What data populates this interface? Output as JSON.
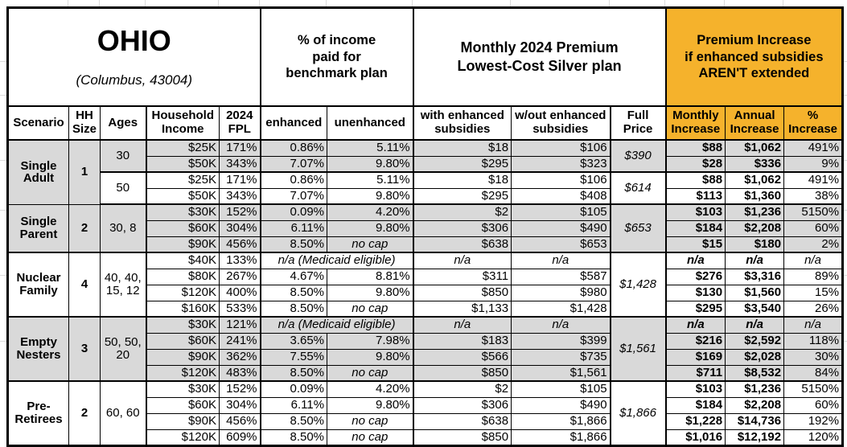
{
  "header": {
    "title": "OHIO",
    "subtitle": "(Columbus, 43004)",
    "income_banner": "% of income\npaid for\nbenchmark plan",
    "premium_banner": "Monthly 2024 Premium\nLowest-Cost Silver plan",
    "increase_banner": "Premium Increase\nif enhanced subsidies\nAREN'T extended"
  },
  "colors": {
    "header_highlight": "#F5B22C",
    "row_shade": "#D9D9D9",
    "table_border": "#000000"
  },
  "chart_data": {
    "type": "table",
    "title": "OHIO (Columbus, 43004) — Monthly 2024 Premium, Lowest-Cost Silver plan",
    "columns": [
      "Scenario",
      "HH\nSize",
      "Ages",
      "Household\nIncome",
      "2024\nFPL",
      "enhanced",
      "unenhanced",
      "with enhanced\nsubsidies",
      "w/out enhanced\nsubsidies",
      "Full\nPrice",
      "Monthly\nIncrease",
      "Annual\nIncrease",
      "%\nIncrease"
    ],
    "rows": [
      [
        "Single Adult",
        "1",
        "30",
        "$25K",
        "171%",
        "0.86%",
        "5.11%",
        "$18",
        "$106",
        "$390",
        "$88",
        "$1,062",
        "491%"
      ],
      [
        "",
        "",
        "",
        "$50K",
        "343%",
        "7.07%",
        "9.80%",
        "$295",
        "$323",
        "",
        "$28",
        "$336",
        "9%"
      ],
      [
        "",
        "",
        "50",
        "$25K",
        "171%",
        "0.86%",
        "5.11%",
        "$18",
        "$106",
        "$614",
        "$88",
        "$1,062",
        "491%"
      ],
      [
        "",
        "",
        "",
        "$50K",
        "343%",
        "7.07%",
        "9.80%",
        "$295",
        "$408",
        "",
        "$113",
        "$1,360",
        "38%"
      ],
      [
        "Single Parent",
        "2",
        "30, 8",
        "$30K",
        "152%",
        "0.09%",
        "4.20%",
        "$2",
        "$105",
        "$653",
        "$103",
        "$1,236",
        "5150%"
      ],
      [
        "",
        "",
        "",
        "$60K",
        "304%",
        "6.11%",
        "9.80%",
        "$306",
        "$490",
        "",
        "$184",
        "$2,208",
        "60%"
      ],
      [
        "",
        "",
        "",
        "$90K",
        "456%",
        "8.50%",
        "no cap",
        "$638",
        "$653",
        "",
        "$15",
        "$180",
        "2%"
      ],
      [
        "Nuclear Family",
        "4",
        "40, 40, 15, 12",
        "$40K",
        "133%",
        "n/a (Medicaid eligible)",
        "",
        "n/a",
        "n/a",
        "$1,428",
        "n/a",
        "n/a",
        "n/a"
      ],
      [
        "",
        "",
        "",
        "$80K",
        "267%",
        "4.67%",
        "8.81%",
        "$311",
        "$587",
        "",
        "$276",
        "$3,316",
        "89%"
      ],
      [
        "",
        "",
        "",
        "$120K",
        "400%",
        "8.50%",
        "9.80%",
        "$850",
        "$980",
        "",
        "$130",
        "$1,560",
        "15%"
      ],
      [
        "",
        "",
        "",
        "$160K",
        "533%",
        "8.50%",
        "no cap",
        "$1,133",
        "$1,428",
        "",
        "$295",
        "$3,540",
        "26%"
      ],
      [
        "Empty Nesters",
        "3",
        "50, 50, 20",
        "$30K",
        "121%",
        "n/a (Medicaid eligible)",
        "",
        "n/a",
        "n/a",
        "$1,561",
        "n/a",
        "n/a",
        "n/a"
      ],
      [
        "",
        "",
        "",
        "$60K",
        "241%",
        "3.65%",
        "7.98%",
        "$183",
        "$399",
        "",
        "$216",
        "$2,592",
        "118%"
      ],
      [
        "",
        "",
        "",
        "$90K",
        "362%",
        "7.55%",
        "9.80%",
        "$566",
        "$735",
        "",
        "$169",
        "$2,028",
        "30%"
      ],
      [
        "",
        "",
        "",
        "$120K",
        "483%",
        "8.50%",
        "no cap",
        "$850",
        "$1,561",
        "",
        "$711",
        "$8,532",
        "84%"
      ],
      [
        "Pre-Retirees",
        "2",
        "60, 60",
        "$30K",
        "152%",
        "0.09%",
        "4.20%",
        "$2",
        "$105",
        "$1,866",
        "$103",
        "$1,236",
        "5150%"
      ],
      [
        "",
        "",
        "",
        "$60K",
        "304%",
        "6.11%",
        "9.80%",
        "$306",
        "$490",
        "",
        "$184",
        "$2,208",
        "60%"
      ],
      [
        "",
        "",
        "",
        "$90K",
        "456%",
        "8.50%",
        "no cap",
        "$638",
        "$1,866",
        "",
        "$1,228",
        "$14,736",
        "192%"
      ],
      [
        "",
        "",
        "",
        "$120K",
        "609%",
        "8.50%",
        "no cap",
        "$850",
        "$1,866",
        "",
        "$1,016",
        "$12,192",
        "120%"
      ]
    ]
  }
}
